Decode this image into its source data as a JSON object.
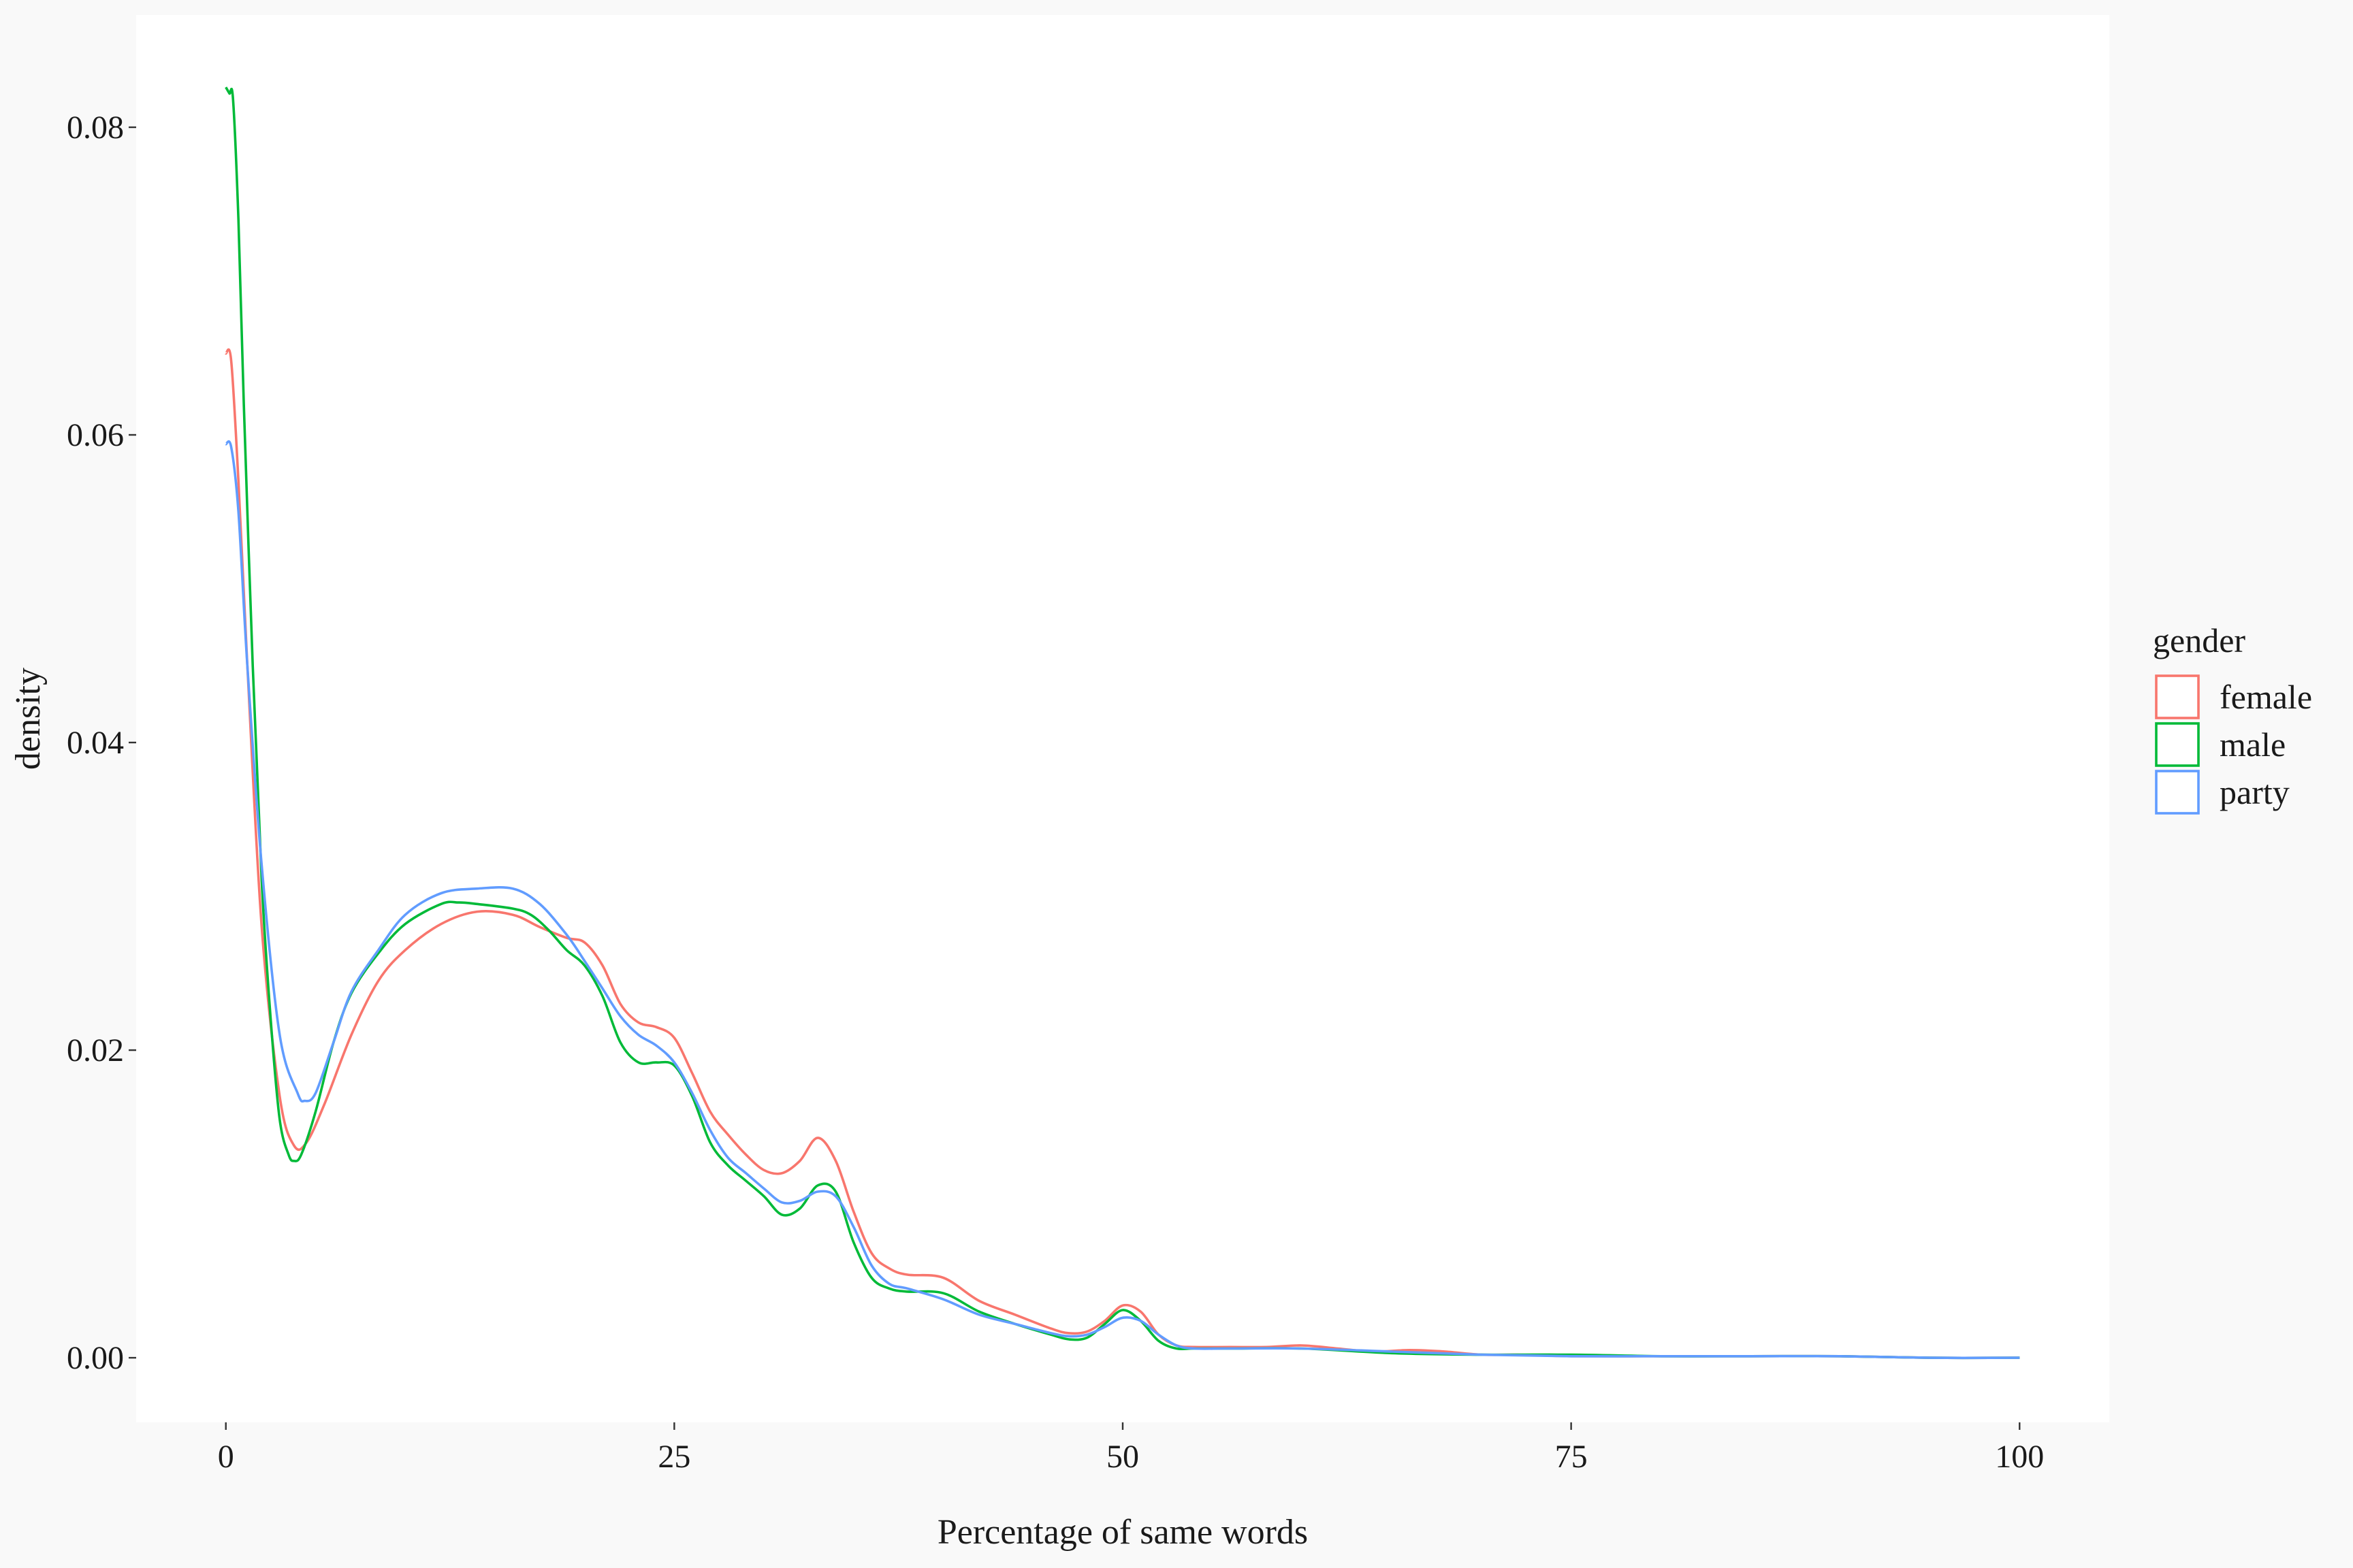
{
  "chart_data": {
    "type": "line",
    "title": "",
    "xlabel": "Percentage of same words",
    "ylabel": "density",
    "xlim": [
      -5,
      105
    ],
    "ylim": [
      -0.0042,
      0.0873
    ],
    "x_ticks": [
      0,
      25,
      50,
      75,
      100
    ],
    "x_tick_labels": [
      "0",
      "25",
      "50",
      "75",
      "100"
    ],
    "y_ticks": [
      0,
      0.02,
      0.04,
      0.06,
      0.08
    ],
    "y_tick_labels": [
      "0.00",
      "0.02",
      "0.04",
      "0.06",
      "0.08"
    ],
    "grid": false,
    "legend": {
      "title": "gender",
      "position": "right"
    },
    "series": [
      {
        "name": "female",
        "color": "#F8766D",
        "x": [
          0,
          0.3,
          0.7,
          1.2,
          2,
          3,
          3.8,
          4.5,
          5.5,
          7,
          8.5,
          10,
          12,
          14,
          16,
          17.5,
          19,
          20,
          21,
          22,
          23,
          24,
          25,
          26,
          27,
          28,
          29,
          30,
          31,
          32,
          33,
          34,
          35,
          36,
          37,
          38,
          40,
          42,
          44,
          46,
          47,
          48,
          49,
          50,
          51,
          52,
          53,
          54,
          56,
          58,
          60,
          62,
          64,
          66,
          68,
          70,
          72,
          75,
          80,
          85,
          90,
          95,
          100
        ],
        "y": [
          0.0653,
          0.0648,
          0.057,
          0.045,
          0.028,
          0.017,
          0.0138,
          0.014,
          0.0165,
          0.021,
          0.0245,
          0.0265,
          0.0282,
          0.029,
          0.0288,
          0.028,
          0.0273,
          0.027,
          0.0255,
          0.023,
          0.0218,
          0.0215,
          0.0208,
          0.0185,
          0.016,
          0.0145,
          0.0132,
          0.0122,
          0.012,
          0.0128,
          0.0143,
          0.0128,
          0.0095,
          0.0068,
          0.0058,
          0.0054,
          0.0052,
          0.0037,
          0.0028,
          0.0019,
          0.0016,
          0.0017,
          0.0024,
          0.0034,
          0.003,
          0.0015,
          0.0008,
          0.0007,
          0.0007,
          0.0007,
          0.0008,
          0.0006,
          0.0004,
          0.0005,
          0.0004,
          0.0002,
          0.0002,
          0.0001,
          0.0001,
          0.0001,
          0.0001,
          0.0,
          0.0
        ]
      },
      {
        "name": "male",
        "color": "#00BA38",
        "x": [
          0,
          0.2,
          0.4,
          0.7,
          1,
          1.5,
          2,
          2.5,
          3,
          3.5,
          3.8,
          4.2,
          5,
          6,
          7,
          8.5,
          10,
          12,
          13,
          14,
          16,
          17,
          18,
          19,
          20,
          21,
          22,
          23,
          24,
          25,
          26,
          27,
          28,
          29,
          30,
          31,
          32,
          33,
          34,
          35,
          36,
          37,
          38,
          40,
          42,
          44,
          46,
          47,
          48,
          49,
          50,
          51,
          52,
          53,
          54,
          56,
          60,
          65,
          70,
          75,
          80,
          85,
          90,
          95,
          100
        ],
        "y": [
          0.0826,
          0.0822,
          0.0818,
          0.074,
          0.062,
          0.045,
          0.031,
          0.022,
          0.0155,
          0.0132,
          0.0128,
          0.0132,
          0.016,
          0.0205,
          0.0237,
          0.0263,
          0.0282,
          0.0295,
          0.0296,
          0.0295,
          0.0292,
          0.0288,
          0.0278,
          0.0265,
          0.0255,
          0.0235,
          0.0205,
          0.0192,
          0.0192,
          0.019,
          0.017,
          0.014,
          0.0125,
          0.0115,
          0.0105,
          0.0093,
          0.0097,
          0.0112,
          0.0108,
          0.0075,
          0.0052,
          0.0045,
          0.0043,
          0.0042,
          0.003,
          0.0022,
          0.0015,
          0.0012,
          0.0013,
          0.0022,
          0.0031,
          0.0024,
          0.0011,
          0.0006,
          0.0006,
          0.0006,
          0.0006,
          0.0003,
          0.0002,
          0.0002,
          0.0001,
          0.0001,
          0.0001,
          0.0,
          0.0
        ]
      },
      {
        "name": "party",
        "color": "#619CFF",
        "x": [
          0,
          0.3,
          0.7,
          1.2,
          2,
          3,
          4,
          4.4,
          5,
          6,
          7,
          8.5,
          10,
          12,
          14,
          16,
          17.5,
          19,
          20,
          21,
          22,
          23,
          24,
          25,
          26,
          27,
          28,
          29,
          30,
          31,
          32,
          33,
          34,
          35,
          36,
          37,
          38,
          40,
          42,
          44,
          46,
          47,
          48,
          49,
          50,
          51,
          52,
          53,
          54,
          56,
          60,
          65,
          70,
          75,
          80,
          85,
          90,
          95,
          100
        ],
        "y": [
          0.0594,
          0.0592,
          0.055,
          0.045,
          0.032,
          0.021,
          0.0172,
          0.0167,
          0.0172,
          0.0205,
          0.0238,
          0.0265,
          0.0288,
          0.0302,
          0.0305,
          0.0305,
          0.0295,
          0.0275,
          0.0258,
          0.024,
          0.0222,
          0.021,
          0.0203,
          0.0192,
          0.0172,
          0.0148,
          0.013,
          0.012,
          0.011,
          0.0101,
          0.0102,
          0.0108,
          0.0105,
          0.0085,
          0.006,
          0.0048,
          0.0045,
          0.0038,
          0.0028,
          0.0022,
          0.0016,
          0.0014,
          0.0015,
          0.002,
          0.0026,
          0.0024,
          0.0015,
          0.0008,
          0.0006,
          0.0006,
          0.0006,
          0.0004,
          0.0002,
          0.0001,
          0.0001,
          0.0001,
          0.0001,
          0.0,
          0.0
        ]
      }
    ]
  }
}
